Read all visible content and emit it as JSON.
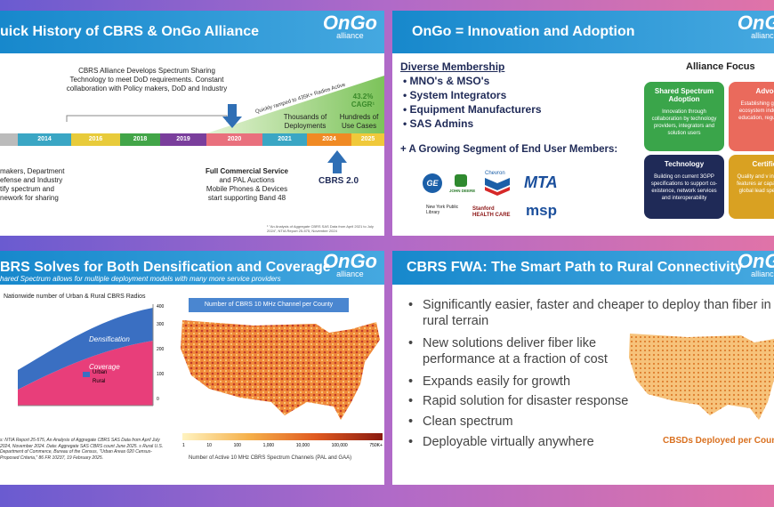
{
  "slides": [
    {
      "title": "uick History of CBRS & OnGo Alliance",
      "logo": "OnGo",
      "logo_sub": "alliance",
      "callout": "CBRS Alliance Develops Spectrum Sharing Technology to meet DoD requirements. Constant collaboration with Policy makers, DoD and Industry",
      "ramp": "Quickly ramped to 435K+ Radios Active",
      "cagr": "43.2% CAGR¹",
      "years": [
        "2014",
        "2016",
        "2018",
        "2019",
        "2020",
        "2021",
        "2024",
        "2025"
      ],
      "milestones": [
        "Thousands of Deployments",
        "Hundreds of Use Cases"
      ],
      "left_note": "makers, Department efense and Industry tify spectrum and nework for sharing",
      "service": [
        "Full Commercial Service",
        "and PAL Auctions",
        "Mobile Phones & Devices",
        "start supporting Band 48"
      ],
      "cbrs2": "CBRS 2.0",
      "footnote": "¹ \"An Analysis of Aggregate CBRS SAS Data from April 2021 to July 2024\", NTIA Report 25-575, November 2024"
    },
    {
      "title": "OnGo = Innovation and Adoption",
      "logo": "OnGo",
      "logo_sub": "alliance",
      "heading": "Diverse Membership",
      "members": [
        "MNO's & MSO's",
        "System Integrators",
        "Equipment Manufacturers",
        "SAS Admins"
      ],
      "segment": "+ A Growing Segment of End User Members:",
      "logos": [
        "GE",
        "JOHN DEERE",
        "Chevron",
        "MTA",
        "New York Public Library",
        "Stanford HEALTH CARE",
        "msp"
      ],
      "focus_title": "Alliance Focus",
      "focus": [
        {
          "title": "Shared Spectrum Adoption",
          "text": "Innovation through collaboration by technology providers, integrators and solution users",
          "color": "#3aa54a"
        },
        {
          "title": "Advoca",
          "text": "Establishing growing a l ecosystem industry enga education, regulatory rela",
          "color": "#ea6a5c"
        },
        {
          "title": "Technology",
          "text": "Building on current 3GPP specifications to support co-existence, network services and interoperability",
          "color": "#1f2a57"
        },
        {
          "title": "Certificati",
          "text": "Quality and v interoperabili features ar capabilities nee global lead spectrum sha",
          "color": "#d9a122"
        }
      ]
    },
    {
      "title": "BRS Solves for Both Densification and Coverage",
      "logo": "OnGo",
      "logo_sub": "alliance",
      "subtitle": "hared Spectrum allows for multiple deployment models with many more service providers",
      "chart_title": "Nationwide number of Urban & Rural CBRS Radios",
      "yticks": [
        "0",
        "100",
        "200",
        "300",
        "400"
      ],
      "areas": [
        "Densification",
        "Coverage"
      ],
      "legend": [
        "Urban",
        "Rural"
      ],
      "map_title": "Number of CBRS 10 MHz Channel per County",
      "scale": [
        "1",
        "10",
        "100",
        "1,000",
        "10,000",
        "100,000",
        "750K+"
      ],
      "scale_caption": "Number of Active 10 MHz CBRS Spectrum Channels (PAL and GAA)",
      "sources": "s: NTIA Report 25-575, An Analysis of Aggregate CBRS SAS Data from April July 2024, November 2024. Data: Aggregate SAS CBRS count June 2025. s Rural U.S. Department of Commerce, Bureau of the Census, \"Urban Areas 020 Census-Proposed Criteria,\" 86 FR 10237, 19 February 2025."
    },
    {
      "title": "CBRS FWA: The Smart Path to Rural Connectivity",
      "logo": "OnGo",
      "logo_sub": "alliance",
      "bullets": [
        "Significantly easier, faster and cheaper to deploy than fiber in rural terrain",
        "New solutions deliver fiber like performance at a fraction of cost",
        "Expands easily for growth",
        "Rapid solution for disaster response",
        "Clean spectrum",
        "Deployable virtually anywhere"
      ],
      "map_caption": "CBSDs Deployed per County"
    }
  ]
}
